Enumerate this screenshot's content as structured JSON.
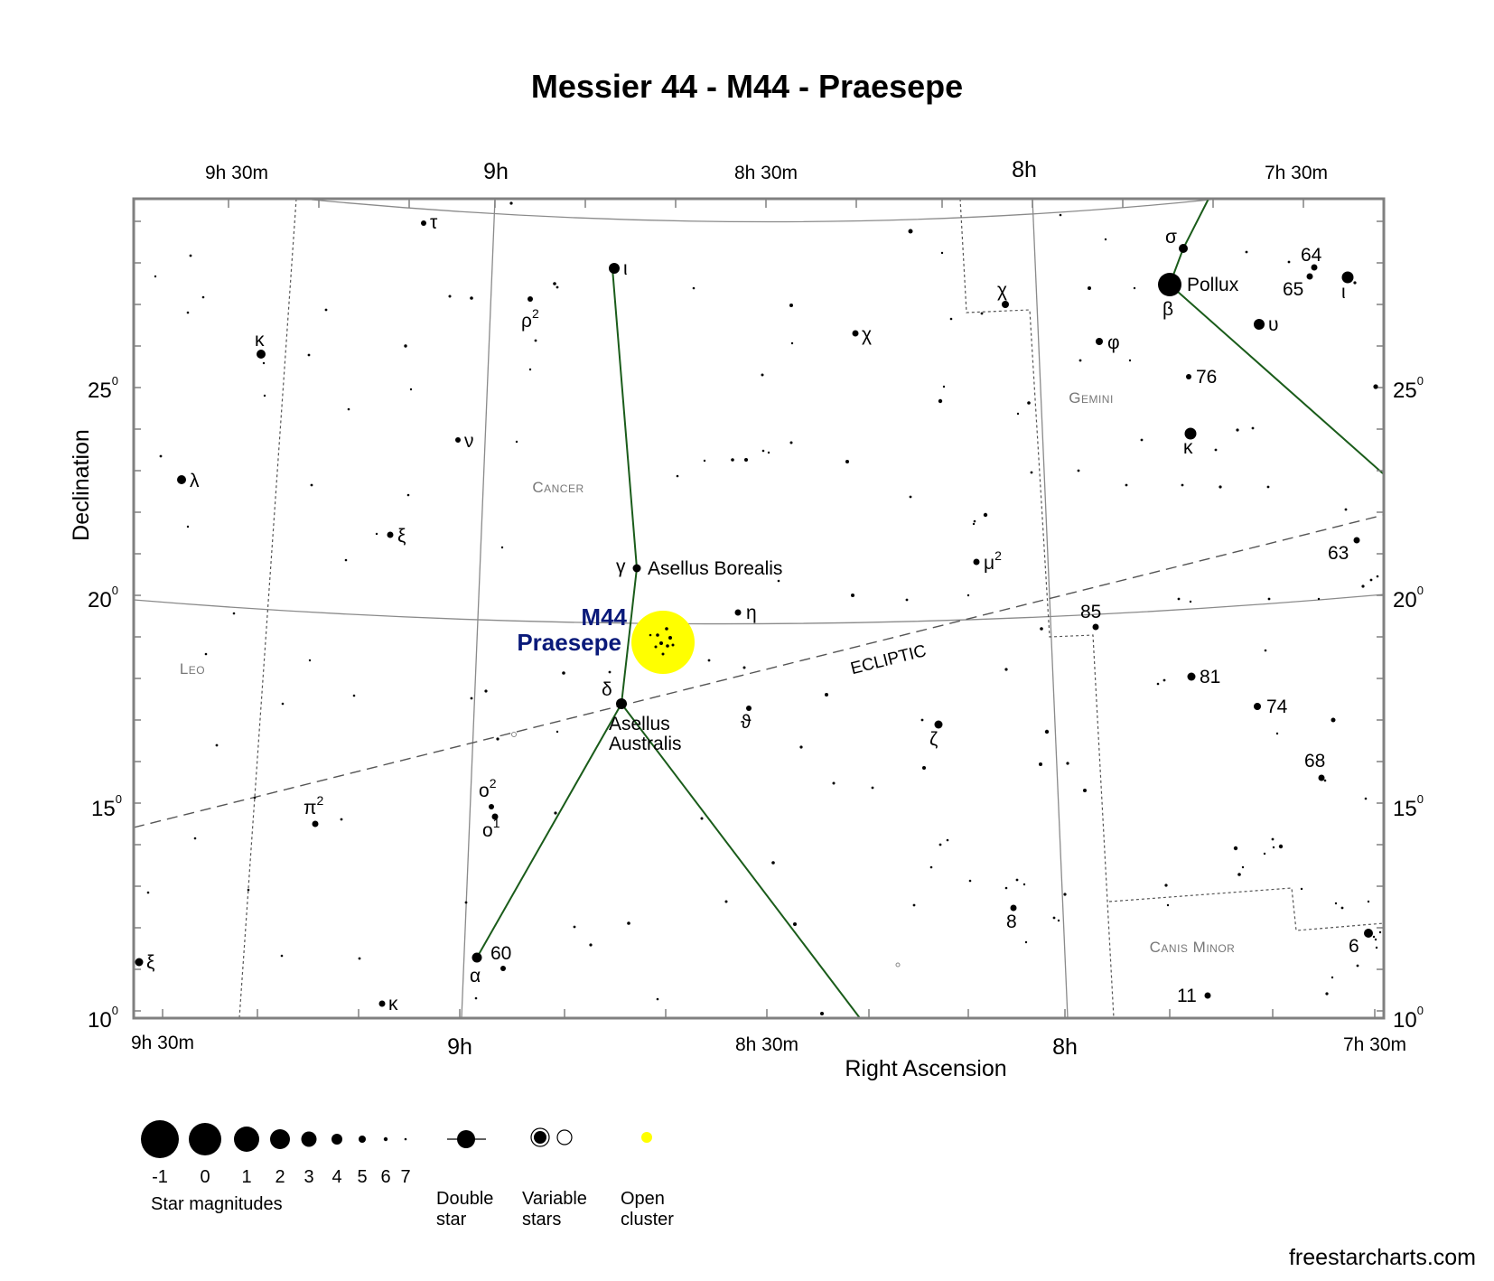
{
  "title": "Messier 44 - M44 - Praesepe",
  "axes": {
    "x_label": "Right Ascension",
    "y_label": "Declination",
    "top_ra_ticks": [
      {
        "label": "9h 30m",
        "major": false
      },
      {
        "label": "9h",
        "major": true
      },
      {
        "label": "8h 30m",
        "major": false
      },
      {
        "label": "8h",
        "major": true
      },
      {
        "label": "7h 30m",
        "major": false
      }
    ],
    "bottom_ra_ticks": [
      {
        "label": "9h 30m",
        "major": false
      },
      {
        "label": "9h",
        "major": true
      },
      {
        "label": "8h 30m",
        "major": false
      },
      {
        "label": "8h",
        "major": true
      },
      {
        "label": "7h 30m",
        "major": false
      }
    ],
    "dec_ticks": [
      {
        "value": "25",
        "sup": "0"
      },
      {
        "value": "20",
        "sup": "0"
      },
      {
        "value": "15",
        "sup": "0"
      },
      {
        "value": "10",
        "sup": "0"
      }
    ]
  },
  "constellations": [
    {
      "name": "Cancer"
    },
    {
      "name": "Leo"
    },
    {
      "name": "Gemini"
    },
    {
      "name": "Canis Minor"
    }
  ],
  "ecliptic_label": "ECLIPTIC",
  "target": {
    "line1": "M44",
    "line2": "Praesepe",
    "highlight_color": "#ffff00",
    "label_color": "#0a1a7a"
  },
  "named_stars": [
    {
      "label": "Asellus Borealis",
      "greek": "γ"
    },
    {
      "label_line1": "Asellus",
      "label_line2": "Australis",
      "greek": "δ"
    },
    {
      "label": "Pollux",
      "greek": "β"
    }
  ],
  "star_labels": {
    "tau": "τ",
    "iota_cnc": "ι",
    "rho2": "ρ",
    "rho2_sup": "2",
    "chi_cnc": "χ",
    "chi_gem": "χ",
    "sigma": "σ",
    "n64": "64",
    "n65": "65",
    "iota_gem": "ι",
    "upsilon": "υ",
    "kappa_leo": "κ",
    "phi": "φ",
    "n76": "76",
    "nu": "ν",
    "kappa_gem": "κ",
    "lambda": "λ",
    "xi_cnc": "ξ",
    "mu2": "μ",
    "mu2_sup": "2",
    "n63": "63",
    "eta": "η",
    "n85": "85",
    "n81": "81",
    "theta": "ϑ",
    "zeta": "ζ",
    "n74": "74",
    "n68": "68",
    "pi2": "π",
    "pi2_sup": "2",
    "o2": "o",
    "o2_sup": "2",
    "o1": "o",
    "o1_sup": "1",
    "n8": "8",
    "xi_leo": "ξ",
    "n60": "60",
    "alpha": "α",
    "n6": "6",
    "kappa_hya": "κ",
    "n11": "11"
  },
  "line_colors": {
    "constellation": "#1a5c1a",
    "grid": "#8a8a8a",
    "frame": "#808080"
  },
  "legend": {
    "magnitudes": [
      "-1",
      "0",
      "1",
      "2",
      "3",
      "4",
      "5",
      "6",
      "7"
    ],
    "magnitudes_label": "Star magnitudes",
    "double_star": [
      "Double",
      "star"
    ],
    "variable_stars": [
      "Variable",
      "stars"
    ],
    "open_cluster": [
      "Open",
      "cluster"
    ]
  },
  "credit": "freestarcharts.com"
}
